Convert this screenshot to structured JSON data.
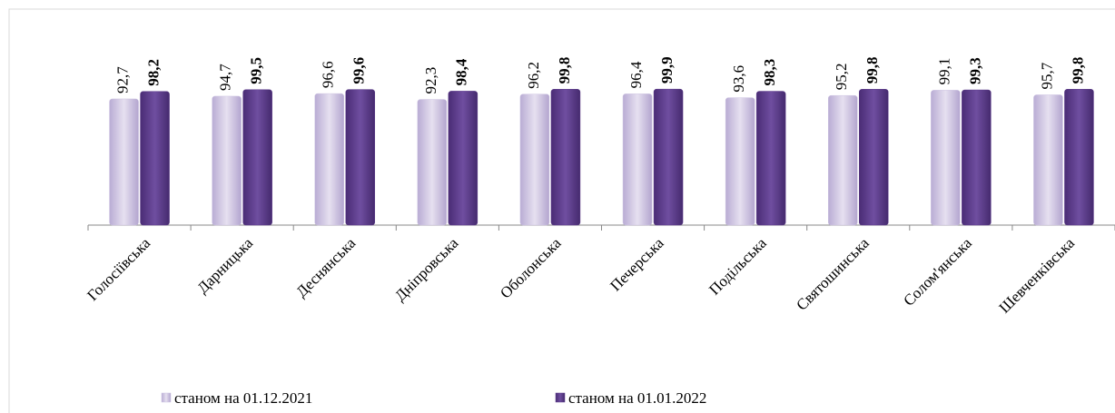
{
  "chart_data": {
    "type": "bar",
    "categories": [
      "Голосіївська",
      "Дарницька",
      "Деснянська",
      "Дніпровська",
      "Оболонська",
      "Печерська",
      "Подільська",
      "Святошинська",
      "Солом'янська",
      "Шевченківська"
    ],
    "series": [
      {
        "name": "станом на 01.12.2021",
        "color": "#cec4e2",
        "values": [
          92.7,
          94.7,
          96.6,
          92.3,
          96.2,
          96.4,
          93.6,
          95.2,
          99.1,
          95.7
        ],
        "value_labels": [
          "92,7",
          "94,7",
          "96,6",
          "92,3",
          "96,2",
          "96,4",
          "93,6",
          "95,2",
          "99,1",
          "95,7"
        ]
      },
      {
        "name": "станом на 01.01.2022",
        "color": "#5e3d8c",
        "values": [
          98.2,
          99.5,
          99.6,
          98.4,
          99.8,
          99.9,
          98.3,
          99.8,
          99.3,
          99.8
        ],
        "value_labels": [
          "98,2",
          "99,5",
          "99,6",
          "98,4",
          "99,8",
          "99,9",
          "98,3",
          "99,8",
          "99,3",
          "99,8"
        ]
      }
    ],
    "ylim": [
      0,
      100
    ]
  }
}
